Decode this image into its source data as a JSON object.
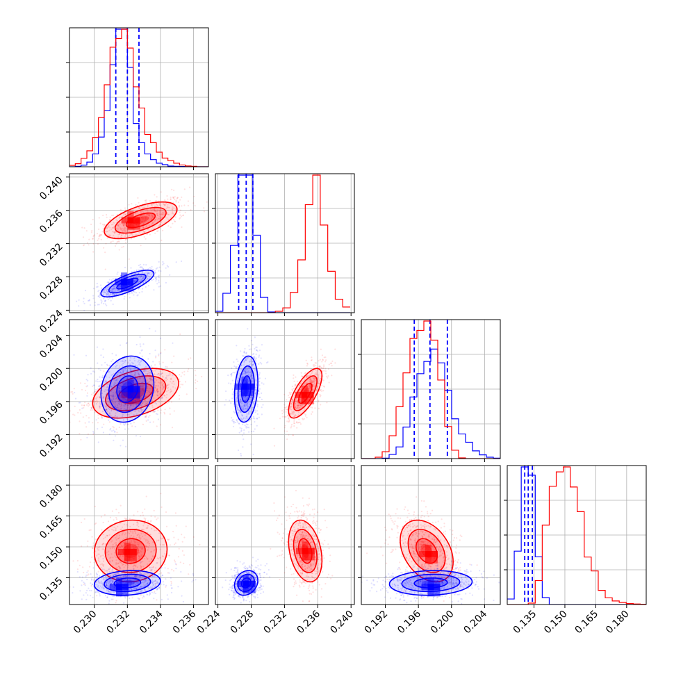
{
  "chart_data": {
    "type": "corner",
    "parameters": 4,
    "grid": true,
    "colors": {
      "series_a": "#0000ff",
      "series_b": "#ff0000"
    },
    "axes": [
      {
        "range": [
          0.2285,
          0.2369
        ],
        "ticks": [
          0.23,
          0.232,
          0.234,
          0.236
        ],
        "tick_labels": [
          "0.230",
          "0.232",
          "0.234",
          "0.236"
        ]
      },
      {
        "range": [
          0.2237,
          0.2404
        ],
        "ticks": [
          0.224,
          0.228,
          0.232,
          0.236,
          0.24
        ],
        "tick_labels": [
          "0.224",
          "0.228",
          "0.232",
          "0.236",
          "0.240"
        ]
      },
      {
        "range": [
          0.1891,
          0.2059
        ],
        "ticks": [
          0.192,
          0.196,
          0.2,
          0.204
        ],
        "tick_labels": [
          "0.192",
          "0.196",
          "0.200",
          "0.204"
        ]
      },
      {
        "range": [
          0.122,
          0.1895
        ],
        "ticks": [
          0.135,
          0.15,
          0.165,
          0.18
        ],
        "tick_labels": [
          "0.135",
          "0.150",
          "0.165",
          "0.180"
        ]
      }
    ],
    "series": [
      {
        "color": "#0000ff",
        "histograms": [
          {
            "bin_start": 0.2285,
            "bin_width": 0.00035,
            "counts": [
              0,
              0.3,
              1.2,
              3.4,
              9.3,
              21.6,
              40.7,
              74.2,
              100,
              100,
              72.2,
              31.5,
              17.5,
              9.3,
              5.2,
              2.6,
              1.5,
              0.5,
              0.3,
              0.2,
              0.1,
              0,
              0,
              0
            ]
          },
          {
            "bin_start": 0.2237,
            "bin_width": 0.0009,
            "counts": [
              1,
              14.1,
              48.9,
              100,
              100,
              56.3,
              11.1,
              0.5,
              0,
              0,
              0,
              0,
              0,
              0,
              0,
              0,
              0,
              0
            ]
          },
          {
            "bin_start": 0.1891,
            "bin_width": 0.00084,
            "counts": [
              0,
              0,
              0,
              0.3,
              3,
              8.5,
              22.9,
              44.8,
              61.7,
              70.6,
              79.6,
              69.6,
              49.7,
              28.9,
              17.9,
              11.9,
              5.6,
              2.7,
              1,
              0.3
            ]
          },
          {
            "bin_start": 0.122,
            "bin_width": 0.0034,
            "counts": [
              4,
              38.8,
              100,
              94,
              34.7,
              5,
              0,
              0,
              0,
              0,
              0,
              0,
              0,
              0,
              0,
              0,
              0,
              0,
              0,
              0
            ]
          }
        ],
        "quantile_lines": [
          [
            0.2313,
            0.232,
            0.2327
          ],
          [
            0.2265,
            0.2274,
            0.2282
          ],
          [
            0.1955,
            0.1974,
            0.1995
          ],
          [
            0.1305,
            0.1322,
            0.1342
          ]
        ],
        "pairs": [
          {
            "x": 0,
            "y": 1,
            "mean": [
              0.232,
              0.2272
            ],
            "sd": [
              0.0008,
              0.0008
            ],
            "rho": 0.75,
            "peak": [
              0.2318,
              0.2274
            ]
          },
          {
            "x": 0,
            "y": 2,
            "mean": [
              0.232,
              0.1975
            ],
            "sd": [
              0.0008,
              0.002
            ],
            "rho": 0.15,
            "peak": [
              0.2322,
              0.1975
            ]
          },
          {
            "x": 1,
            "y": 2,
            "mean": [
              0.2274,
              0.1975
            ],
            "sd": [
              0.0007,
              0.002
            ],
            "rho": 0.2,
            "peak": [
              0.2272,
              0.1978
            ]
          },
          {
            "x": 0,
            "y": 3,
            "mean": [
              0.232,
              0.1325
            ],
            "sd": [
              0.001,
              0.003
            ],
            "rho": 0.15,
            "peak": [
              0.2315,
              0.1305
            ]
          },
          {
            "x": 1,
            "y": 3,
            "mean": [
              0.2274,
              0.1325
            ],
            "sd": [
              0.0007,
              0.003
            ],
            "rho": 0.2,
            "peak": [
              0.2274,
              0.132
            ]
          },
          {
            "x": 2,
            "y": 3,
            "mean": [
              0.1975,
              0.1325
            ],
            "sd": [
              0.0025,
              0.003
            ],
            "rho": 0.1,
            "peak": [
              0.1975,
              0.1305
            ]
          }
        ]
      },
      {
        "color": "#ff0000",
        "histograms": [
          {
            "bin_start": 0.2285,
            "bin_width": 0.00035,
            "counts": [
              1,
              2.2,
              6.1,
              11.6,
              21.4,
              35.7,
              59.6,
              86.9,
              93.2,
              100,
              86.3,
              58.1,
              42.7,
              23.5,
              17.5,
              10.6,
              6.3,
              4.4,
              2.6,
              1.3,
              0.6,
              0.3,
              0,
              0
            ]
          },
          {
            "bin_start": 0.2237,
            "bin_width": 0.0009,
            "counts": [
              0,
              0,
              0,
              0,
              0,
              0,
              0,
              0,
              1,
              3.5,
              14.7,
              38.4,
              78.5,
              100,
              63.7,
              30.1,
              9.8,
              4.1
            ]
          },
          {
            "bin_start": 0.1891,
            "bin_width": 0.00084,
            "counts": [
              0,
              0,
              1,
              5,
              16.6,
              37.7,
              62.3,
              87.3,
              93.2,
              100,
              86.1,
              57.1,
              23.3,
              6.1,
              0.5,
              0,
              0,
              0,
              0,
              0
            ]
          },
          {
            "bin_start": 0.122,
            "bin_width": 0.0034,
            "counts": [
              0,
              0,
              0,
              1,
              17.4,
              57.7,
              85.9,
              96.4,
              100,
              85.4,
              67.5,
              34.5,
              24.4,
              10.3,
              4.9,
              2.6,
              1.5,
              0.7,
              0.4,
              0.2
            ]
          }
        ],
        "quantile_lines": [],
        "pairs": [
          {
            "x": 0,
            "y": 1,
            "mean": [
              0.2328,
              0.2348
            ],
            "sd": [
              0.0011,
              0.0011
            ],
            "rho": 0.6,
            "peak": [
              0.2322,
              0.2348
            ]
          },
          {
            "x": 0,
            "y": 2,
            "mean": [
              0.2325,
              0.197
            ],
            "sd": [
              0.0013,
              0.0015
            ],
            "rho": 0.4,
            "peak": [
              0.2322,
              0.1968
            ]
          },
          {
            "x": 1,
            "y": 2,
            "mean": [
              0.2345,
              0.197
            ],
            "sd": [
              0.001,
              0.0015
            ],
            "rho": 0.7,
            "peak": [
              0.2344,
              0.1968
            ]
          },
          {
            "x": 0,
            "y": 3,
            "mean": [
              0.2322,
              0.148
            ],
            "sd": [
              0.0011,
              0.0075
            ],
            "rho": 0.05,
            "peak": [
              0.232,
              0.1475
            ]
          },
          {
            "x": 1,
            "y": 3,
            "mean": [
              0.2345,
              0.148
            ],
            "sd": [
              0.001,
              0.0075
            ],
            "rho": -0.3,
            "peak": [
              0.2345,
              0.148
            ]
          },
          {
            "x": 2,
            "y": 3,
            "mean": [
              0.197,
              0.148
            ],
            "sd": [
              0.0016,
              0.0075
            ],
            "rho": -0.35,
            "peak": [
              0.1972,
              0.1465
            ]
          }
        ]
      }
    ]
  }
}
